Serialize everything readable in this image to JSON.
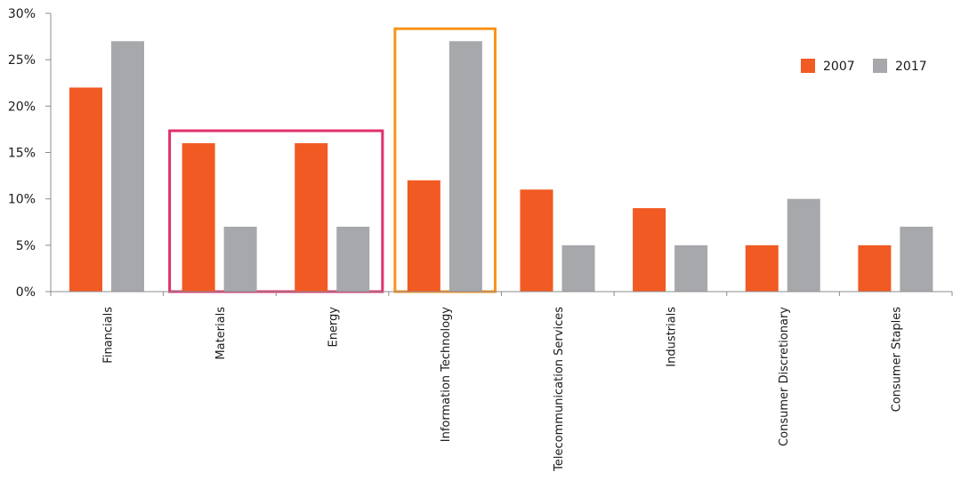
{
  "colors": {
    "series_2007": "#f15a22",
    "series_2017": "#a7a8ab",
    "highlight_materials_energy": "#e0306e",
    "highlight_it": "#f7941d",
    "axis": "#8c8c8c"
  },
  "chart_data": {
    "type": "bar",
    "title": "",
    "xlabel": "",
    "ylabel": "",
    "categories": [
      "Financials",
      "Materials",
      "Energy",
      "Information Technology",
      "Telecommunication Services",
      "Industrials",
      "Consumer Discretionary",
      "Consumer Staples"
    ],
    "series": [
      {
        "name": "2007",
        "values": [
          22,
          16,
          16,
          12,
          11,
          9,
          5,
          5
        ]
      },
      {
        "name": "2017",
        "values": [
          27,
          7,
          7,
          27,
          5,
          5,
          10,
          7
        ]
      }
    ],
    "ylim": [
      0,
      30
    ],
    "yticks": [
      0,
      5,
      10,
      15,
      20,
      25,
      30
    ],
    "ytick_labels": [
      "0%",
      "5%",
      "10%",
      "15%",
      "20%",
      "25%",
      "30%"
    ],
    "legend_position": "top-right",
    "grid": false,
    "highlights": [
      {
        "categories": [
          "Materials",
          "Energy"
        ],
        "color_key": "highlight_materials_energy"
      },
      {
        "categories": [
          "Information Technology"
        ],
        "color_key": "highlight_it"
      }
    ]
  }
}
